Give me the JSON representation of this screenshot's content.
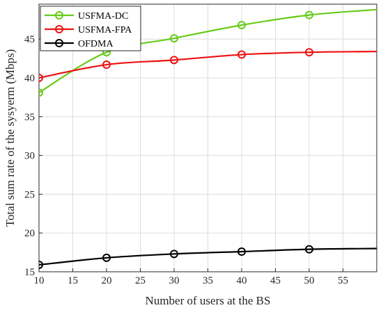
{
  "chart_data": {
    "type": "line",
    "xlabel": "Number of users at the BS",
    "ylabel": "Total sum rate of the sysyerm (Mbps)",
    "xlim": [
      10,
      60
    ],
    "ylim": [
      15,
      49.5
    ],
    "xticks": [
      10,
      15,
      20,
      25,
      30,
      35,
      40,
      45,
      50,
      55
    ],
    "yticks": [
      15,
      20,
      25,
      30,
      35,
      40,
      45
    ],
    "grid": true,
    "legend_position": "top-left",
    "marker": "circle",
    "series": [
      {
        "name": "USFMA-DC",
        "color": "#66cc1a",
        "x": [
          10,
          20,
          30,
          40,
          50,
          60
        ],
        "values": [
          38.1,
          43.3,
          45.1,
          46.8,
          48.1,
          48.8
        ],
        "marker_x": [
          10,
          20,
          30,
          40,
          50
        ]
      },
      {
        "name": "USFMA-FPA",
        "color": "#ee1111",
        "x": [
          10,
          20,
          30,
          40,
          50,
          60
        ],
        "values": [
          40.0,
          41.7,
          42.3,
          43.0,
          43.3,
          43.4
        ],
        "marker_x": [
          10,
          20,
          30,
          40,
          50
        ]
      },
      {
        "name": "OFDMA",
        "color": "#000000",
        "x": [
          10,
          20,
          30,
          40,
          50,
          60
        ],
        "values": [
          15.9,
          16.8,
          17.3,
          17.6,
          17.9,
          18.0
        ],
        "marker_x": [
          10,
          20,
          30,
          40,
          50
        ]
      }
    ]
  }
}
